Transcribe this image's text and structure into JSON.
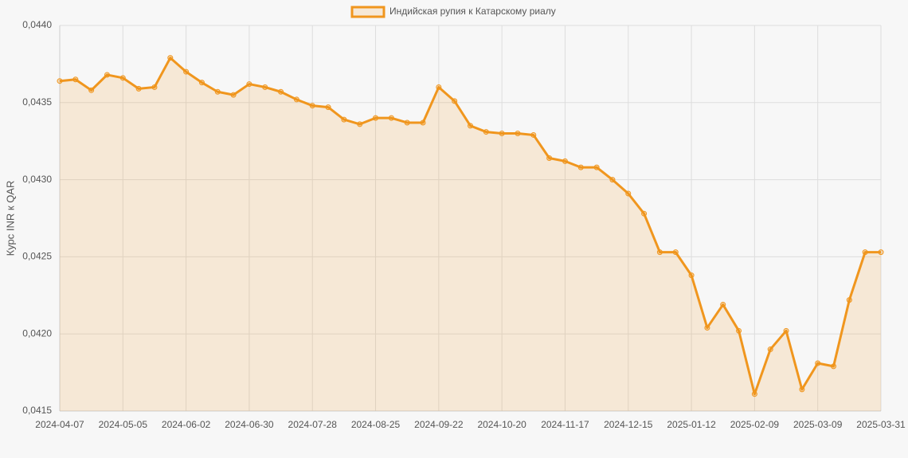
{
  "chart_data": {
    "type": "line",
    "y_label": "Курс INR к QAR",
    "categories": [
      "2024-04-07",
      null,
      null,
      null,
      "2024-05-05",
      null,
      null,
      null,
      "2024-06-02",
      null,
      null,
      null,
      "2024-06-30",
      null,
      null,
      null,
      "2024-07-28",
      null,
      null,
      null,
      "2024-08-25",
      null,
      null,
      null,
      "2024-09-22",
      null,
      null,
      null,
      "2024-10-20",
      null,
      null,
      null,
      "2024-11-17",
      null,
      null,
      null,
      "2024-12-15",
      null,
      null,
      null,
      "2025-01-12",
      null,
      null,
      null,
      "2025-02-09",
      null,
      null,
      null,
      "2025-03-09",
      null,
      null,
      null,
      "2025-03-31"
    ],
    "series": [
      {
        "name": "Индийская рупия к Катарскому риалу",
        "color": "#f0961e",
        "fill": "rgba(240,150,30,0.15)",
        "values": [
          0.04364,
          0.04365,
          0.04358,
          0.04368,
          0.04366,
          0.04359,
          0.0436,
          0.04379,
          0.0437,
          0.04363,
          0.04357,
          0.04355,
          0.04362,
          0.0436,
          0.04357,
          0.04352,
          0.04348,
          0.04347,
          0.04339,
          0.04336,
          0.0434,
          0.0434,
          0.04337,
          0.04337,
          0.0436,
          0.04351,
          0.04335,
          0.04331,
          0.0433,
          0.0433,
          0.04329,
          0.04314,
          0.04312,
          0.04308,
          0.04308,
          0.043,
          0.04291,
          0.04278,
          0.04253,
          0.04253,
          0.04238,
          0.04204,
          0.04219,
          0.04202,
          0.04161,
          0.0419,
          0.04202,
          0.04164,
          0.04181,
          0.04179,
          0.04222,
          0.04253,
          0.04253
        ]
      }
    ],
    "ylim": [
      0.0415,
      0.044
    ],
    "yticks": [
      {
        "value": 0.0415,
        "label": "0,0415"
      },
      {
        "value": 0.042,
        "label": "0,0420"
      },
      {
        "value": 0.0425,
        "label": "0,0425"
      },
      {
        "value": 0.043,
        "label": "0,0430"
      },
      {
        "value": 0.0435,
        "label": "0,0435"
      },
      {
        "value": 0.044,
        "label": "0,0440"
      }
    ],
    "grid": true,
    "legend": "top"
  }
}
